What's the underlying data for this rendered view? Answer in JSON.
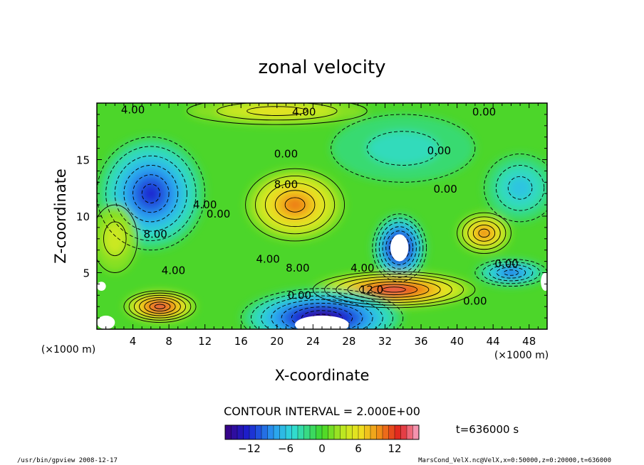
{
  "chart_data": {
    "type": "heatmap",
    "title": "zonal velocity",
    "xlabel": "X-coordinate",
    "ylabel": "Z-coordinate",
    "x_unit": "(×1000 m)",
    "z_unit": "(×1000 m)",
    "xlim": [
      0,
      50
    ],
    "zlim": [
      0,
      20
    ],
    "x_ticks": [
      "4",
      "8",
      "12",
      "16",
      "20",
      "24",
      "28",
      "32",
      "36",
      "40",
      "44",
      "48"
    ],
    "x_tick_values": [
      4,
      8,
      12,
      16,
      20,
      24,
      28,
      32,
      36,
      40,
      44,
      48
    ],
    "z_ticks": [
      "5",
      "10",
      "15"
    ],
    "z_tick_values": [
      5,
      10,
      15
    ],
    "contour_interval_text": "CONTOUR INTERVAL = 2.000E+00",
    "time_text": "t=636000 s",
    "colorbar": {
      "range": [
        -16,
        16
      ],
      "ticks": [
        "−12",
        "−6",
        "0",
        "6",
        "12"
      ],
      "tick_values": [
        -12,
        -6,
        0,
        6,
        12
      ]
    },
    "features": [
      {
        "x": 33.6,
        "z": 7.2,
        "value": -16,
        "label": ""
      },
      {
        "x": 6.0,
        "z": 12.0,
        "value": -12,
        "label": ""
      },
      {
        "x": 22.0,
        "z": 11.0,
        "value": 10,
        "label": "8.00"
      },
      {
        "x": 33.0,
        "z": 3.5,
        "value": 13,
        "label": "12.0"
      },
      {
        "x": 7.0,
        "z": 2.0,
        "value": 13,
        "label": ""
      },
      {
        "x": 25.0,
        "z": 1.0,
        "value": -16,
        "label": ""
      },
      {
        "x": 46.0,
        "z": 5.0,
        "value": -10,
        "label": ""
      },
      {
        "x": 43.0,
        "z": 8.5,
        "value": 10,
        "label": ""
      },
      {
        "x": 47.0,
        "z": 12.5,
        "value": -6,
        "label": ""
      },
      {
        "x": 34.0,
        "z": 16.0,
        "value": -4,
        "label": ""
      },
      {
        "x": 20.0,
        "z": 19.3,
        "value": 6,
        "label": ""
      },
      {
        "x": 2.0,
        "z": 8.0,
        "value": 4,
        "label": ""
      }
    ],
    "contour_labels": [
      {
        "x": 4.0,
        "z": 19.4,
        "text": "4.00"
      },
      {
        "x": 23.0,
        "z": 19.2,
        "text": "4.00"
      },
      {
        "x": 43.0,
        "z": 19.2,
        "text": "0.00"
      },
      {
        "x": 21.0,
        "z": 12.8,
        "text": "8.00"
      },
      {
        "x": 12.0,
        "z": 11.0,
        "text": "4.00"
      },
      {
        "x": 13.5,
        "z": 10.2,
        "text": "0.00"
      },
      {
        "x": 6.5,
        "z": 8.4,
        "text": "8.00"
      },
      {
        "x": 8.5,
        "z": 5.2,
        "text": "4.00"
      },
      {
        "x": 19.0,
        "z": 6.2,
        "text": "4.00"
      },
      {
        "x": 22.3,
        "z": 5.4,
        "text": "8.00"
      },
      {
        "x": 29.5,
        "z": 5.4,
        "text": "4.00"
      },
      {
        "x": 30.5,
        "z": 3.5,
        "text": "12.0"
      },
      {
        "x": 22.5,
        "z": 3.0,
        "text": "0.00"
      },
      {
        "x": 21.0,
        "z": 15.5,
        "text": "0.00"
      },
      {
        "x": 38.0,
        "z": 15.8,
        "text": "0.00"
      },
      {
        "x": 38.7,
        "z": 12.4,
        "text": "0.00"
      },
      {
        "x": 45.5,
        "z": 5.8,
        "text": "0.00"
      },
      {
        "x": 42.0,
        "z": 2.5,
        "text": "0.00"
      }
    ]
  },
  "footer": {
    "left": "/usr/bin/gpview   2008-12-17",
    "right": "MarsCond_VelX.nc@VelX,x=0:50000,z=0:20000,t=636000"
  }
}
